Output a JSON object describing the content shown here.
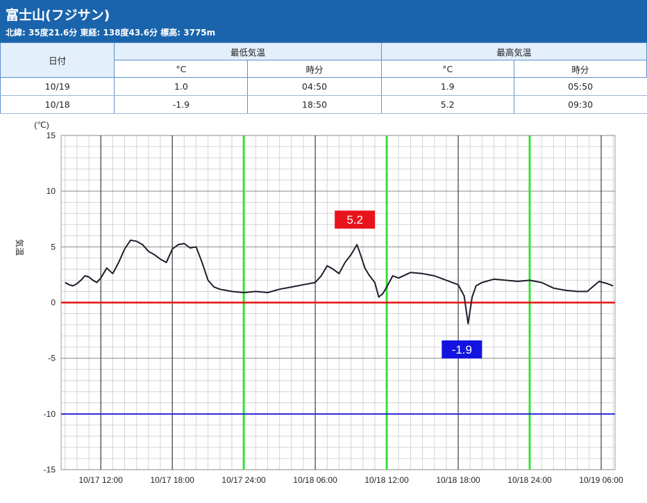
{
  "station": {
    "name": "富士山(フジサン)",
    "details": "北緯: 35度21.6分 東経: 138度43.6分 標高: 3775m"
  },
  "summary_table": {
    "date_header": "日付",
    "min_header": "最低気温",
    "max_header": "最高気温",
    "unit_header": "°C",
    "time_header": "時分",
    "rows": [
      {
        "date": "10/19",
        "min": "1.0",
        "min_time": "04:50",
        "max": "1.9",
        "max_time": "05:50"
      },
      {
        "date": "10/18",
        "min": "-1.9",
        "min_time": "18:50",
        "max": "5.2",
        "max_time": "09:30"
      }
    ]
  },
  "colors": {
    "header_bg": "#1a64ad",
    "zero_line": "#e0120e",
    "minus10_line": "#2626d8",
    "day_boundary": "#35e035",
    "series": "#1c1c2c",
    "max_label_bg": "#e8141c",
    "min_label_bg": "#1414e0"
  },
  "chart_data": {
    "type": "line",
    "ylabel": "気温",
    "yunit": "(℃)",
    "ylim": [
      -15,
      15
    ],
    "yticks": [
      15,
      10,
      5,
      0,
      -5,
      -10,
      -15
    ],
    "x_range": [
      "10/17 08:40",
      "10/19 07:10"
    ],
    "xticks": [
      "10/17 12:00",
      "10/17 18:00",
      "10/17 24:00",
      "10/18 06:00",
      "10/18 12:00",
      "10/18 18:00",
      "10/18 24:00",
      "10/19 06:00"
    ],
    "grid": true,
    "day_boundaries": [
      "10/17 24:00",
      "10/18 12:00",
      "10/18 24:00"
    ],
    "reference_lines": [
      0,
      -10
    ],
    "annotations": [
      {
        "text": "5.2",
        "x": "10/18 09:30",
        "y": 5.2,
        "kind": "max"
      },
      {
        "text": "-1.9",
        "x": "10/18 18:50",
        "y": -1.9,
        "kind": "min"
      }
    ],
    "series": [
      {
        "x": [
          "10/17 09:00",
          "10/17 09:20",
          "10/17 09:40",
          "10/17 10:00",
          "10/17 10:20",
          "10/17 10:40",
          "10/17 11:00",
          "10/17 11:20",
          "10/17 11:40",
          "10/17 12:00",
          "10/17 12:30",
          "10/17 13:00",
          "10/17 13:30",
          "10/17 14:00",
          "10/17 14:30",
          "10/17 15:00",
          "10/17 15:30",
          "10/17 16:00",
          "10/17 16:30",
          "10/17 17:00",
          "10/17 17:30",
          "10/17 18:00",
          "10/17 18:30",
          "10/17 19:00",
          "10/17 19:30",
          "10/17 20:00",
          "10/17 20:30",
          "10/17 21:00",
          "10/17 21:30",
          "10/17 22:00",
          "10/17 23:00",
          "10/18 00:00",
          "10/18 01:00",
          "10/18 02:00",
          "10/18 03:00",
          "10/18 04:00",
          "10/18 05:00",
          "10/18 06:00",
          "10/18 06:30",
          "10/18 07:00",
          "10/18 07:30",
          "10/18 08:00",
          "10/18 08:30",
          "10/18 09:00",
          "10/18 09:30",
          "10/18 09:50",
          "10/18 10:10",
          "10/18 10:30",
          "10/18 11:00",
          "10/18 11:20",
          "10/18 11:40",
          "10/18 12:00",
          "10/18 12:30",
          "10/18 13:00",
          "10/18 14:00",
          "10/18 15:00",
          "10/18 16:00",
          "10/18 17:00",
          "10/18 18:00",
          "10/18 18:30",
          "10/18 18:50",
          "10/18 19:10",
          "10/18 19:30",
          "10/18 20:00",
          "10/18 21:00",
          "10/18 22:00",
          "10/18 23:00",
          "10/19 00:00",
          "10/19 01:00",
          "10/19 02:00",
          "10/19 03:00",
          "10/19 04:00",
          "10/19 04:50",
          "10/19 05:30",
          "10/19 05:50",
          "10/19 06:30",
          "10/19 07:00"
        ],
        "y": [
          1.8,
          1.6,
          1.5,
          1.7,
          2.0,
          2.4,
          2.3,
          2.0,
          1.8,
          2.2,
          3.1,
          2.6,
          3.6,
          4.8,
          5.6,
          5.5,
          5.2,
          4.6,
          4.3,
          3.9,
          3.6,
          4.8,
          5.2,
          5.3,
          4.9,
          5.0,
          3.6,
          2.0,
          1.4,
          1.2,
          1.0,
          0.9,
          1.0,
          0.9,
          1.2,
          1.4,
          1.6,
          1.8,
          2.4,
          3.3,
          3.0,
          2.6,
          3.6,
          4.3,
          5.2,
          4.2,
          3.1,
          2.5,
          1.8,
          0.5,
          0.8,
          1.4,
          2.4,
          2.2,
          2.7,
          2.6,
          2.4,
          2.0,
          1.6,
          0.6,
          -1.9,
          0.5,
          1.5,
          1.8,
          2.1,
          2.0,
          1.9,
          2.0,
          1.8,
          1.3,
          1.1,
          1.0,
          1.0,
          1.6,
          1.9,
          1.7,
          1.5
        ]
      }
    ]
  }
}
